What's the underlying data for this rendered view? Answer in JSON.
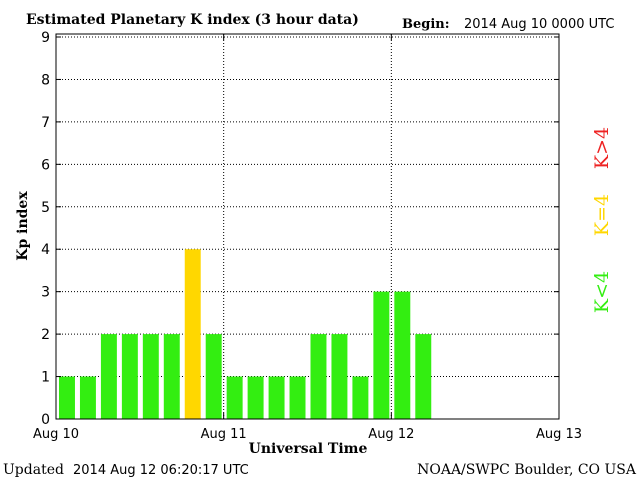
{
  "header": {
    "title": "Estimated Planetary K index (3 hour data)",
    "begin_label": "Begin:",
    "begin_value": "2014 Aug 10 0000 UTC"
  },
  "footer": {
    "updated_label": "Updated",
    "updated_value": "2014 Aug 12 06:20:17 UTC",
    "source": "NOAA/SWPC Boulder, CO USA"
  },
  "legend": {
    "low_label": "K<4",
    "mid_label": "K=4",
    "high_label": "K>4",
    "low_color": "#33ee11",
    "mid_color": "#ffd700",
    "high_color": "#ee2222",
    "placement": "right, vertical"
  },
  "chart_data": {
    "type": "bar",
    "title": "Estimated Planetary K index (3 hour data)",
    "xlabel": "Universal Time",
    "ylabel": "Kp index",
    "ylim": [
      0,
      9
    ],
    "yticks": [
      "0",
      "1",
      "2",
      "3",
      "4",
      "5",
      "6",
      "7",
      "8",
      "9"
    ],
    "x_tick_labels": [
      "Aug 10",
      "Aug 11",
      "Aug 12",
      "Aug 13"
    ],
    "bar_interval_hours": 3,
    "grid": true,
    "values": [
      1,
      1,
      2,
      2,
      2,
      2,
      4,
      2,
      1,
      1,
      1,
      1,
      2,
      2,
      1,
      3,
      3,
      2
    ]
  }
}
